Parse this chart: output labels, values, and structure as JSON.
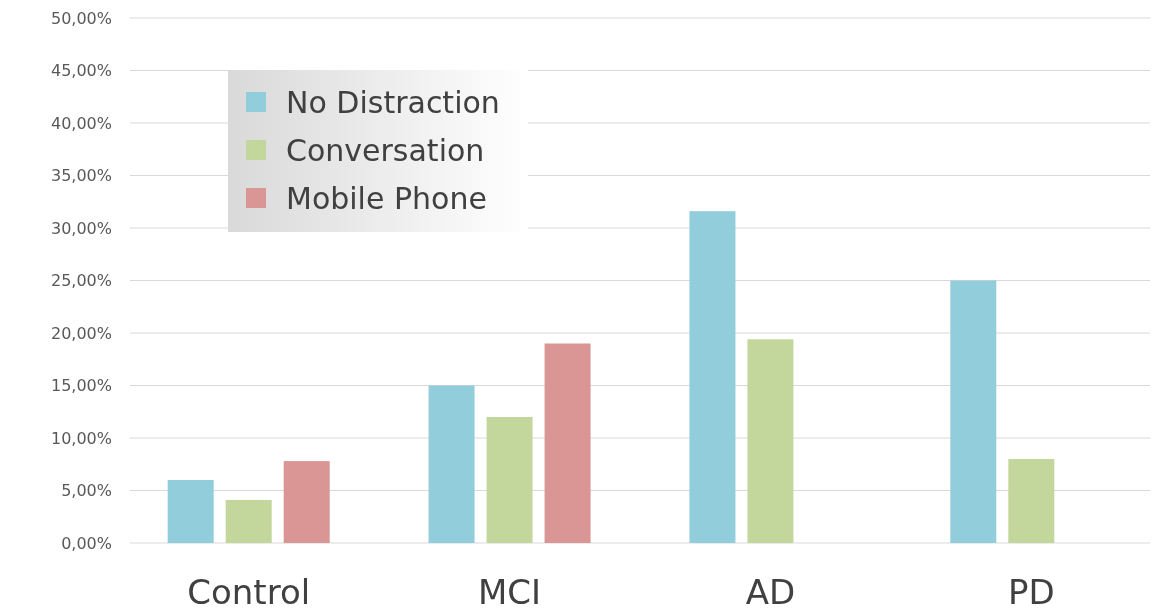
{
  "chart_data": {
    "type": "bar",
    "categories": [
      "Control",
      "MCI",
      "AD",
      "PD"
    ],
    "series": [
      {
        "name": "No Distraction",
        "color": "#92cddc",
        "values": [
          6.0,
          15.0,
          31.6,
          25.0
        ]
      },
      {
        "name": "Conversation",
        "color": "#c3d69b",
        "values": [
          4.1,
          12.0,
          19.4,
          8.0
        ]
      },
      {
        "name": "Mobile Phone",
        "color": "#d99694",
        "values": [
          7.8,
          19.0,
          null,
          null
        ]
      }
    ],
    "ylim": [
      0,
      50
    ],
    "yticks": [
      {
        "value": 0,
        "label": "0,00%"
      },
      {
        "value": 5,
        "label": "5,00%"
      },
      {
        "value": 10,
        "label": "10,00%"
      },
      {
        "value": 15,
        "label": "15,00%"
      },
      {
        "value": 20,
        "label": "20,00%"
      },
      {
        "value": 25,
        "label": "25,00%"
      },
      {
        "value": 30,
        "label": "30,00%"
      },
      {
        "value": 35,
        "label": "35,00%"
      },
      {
        "value": 40,
        "label": "40,00%"
      },
      {
        "value": 45,
        "label": "45,00%"
      },
      {
        "value": 50,
        "label": "50,00%"
      }
    ],
    "grid": "y",
    "legend": "top left"
  }
}
